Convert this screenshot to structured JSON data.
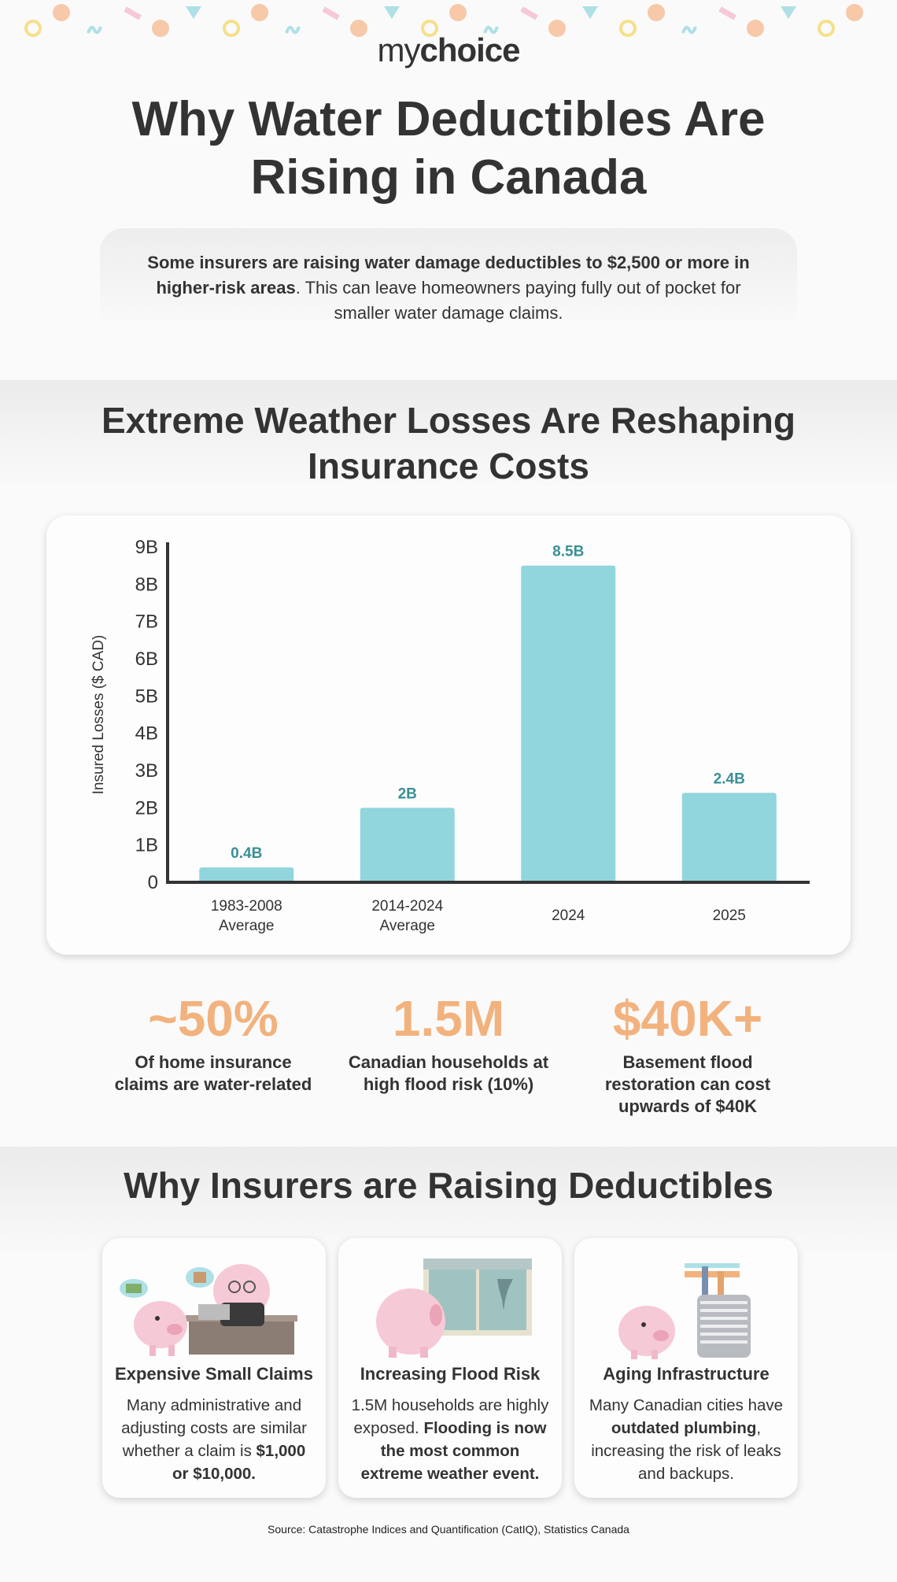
{
  "brand": {
    "logo_my": "my",
    "logo_choice": "choice"
  },
  "title": "Why Water Deductibles Are Rising in Canada",
  "intro": {
    "bold": "Some insurers are raising water damage deductibles to $2,500 or more in higher-risk areas",
    "rest": ". This can leave homeowners paying fully out of pocket for smaller water damage claims."
  },
  "section1_title": "Extreme Weather Losses Are Reshaping Insurance Costs",
  "chart_data": {
    "type": "bar",
    "categories": [
      [
        "1983-2008",
        "Average"
      ],
      [
        "2014-2024",
        "Average"
      ],
      [
        "2024"
      ],
      [
        "2025"
      ]
    ],
    "values": [
      0.4,
      2,
      8.5,
      2.4
    ],
    "value_labels": [
      "0.4B",
      "2B",
      "8.5B",
      "2.4B"
    ],
    "ylabel": "Insured Losses ($ CAD)",
    "ylim": [
      0,
      9
    ],
    "yticks": [
      0,
      1,
      2,
      3,
      4,
      5,
      6,
      7,
      8,
      9
    ],
    "ytick_labels": [
      "0",
      "1B",
      "2B",
      "3B",
      "4B",
      "5B",
      "6B",
      "7B",
      "8B",
      "9B"
    ],
    "bar_color": "#91d5dd",
    "label_color": "#3a8f95",
    "grid": false,
    "legend": "none"
  },
  "stats": [
    {
      "value": "~50%",
      "desc": "Of home insurance claims are water-related"
    },
    {
      "value": "1.5M",
      "desc": "Canadian households at high flood risk (10%)"
    },
    {
      "value": "$40K+",
      "desc": "Basement flood restoration can cost upwards of $40K"
    }
  ],
  "section2_title": "Why Insurers are Raising Deductibles",
  "cards": [
    {
      "title": "Expensive Small Claims",
      "body_plain": "Many administrative and adjusting costs are similar whether a claim is ",
      "body_bold": "$1,000 or $10,000.",
      "icon": "piggy-bank-office-icon"
    },
    {
      "title": "Increasing Flood Risk",
      "body_plain": "1.5M households are highly exposed. ",
      "body_bold": "Flooding is now the most common extreme weather event.",
      "icon": "piggy-bank-storm-window-icon"
    },
    {
      "title": "Aging Infrastructure",
      "body_plain1": "Many Canadian cities have ",
      "body_bold": "outdated plumbing",
      "body_plain2": ", increasing the risk of leaks and backups.",
      "icon": "piggy-bank-water-heater-icon"
    }
  ],
  "source": "Source: Catastrophe Indices and Quantification (CatIQ), Statistics Canada",
  "colors": {
    "accent_orange": "#f2b27e",
    "bar": "#91d5dd",
    "text": "#333333",
    "pig": "#f6c9d6"
  }
}
